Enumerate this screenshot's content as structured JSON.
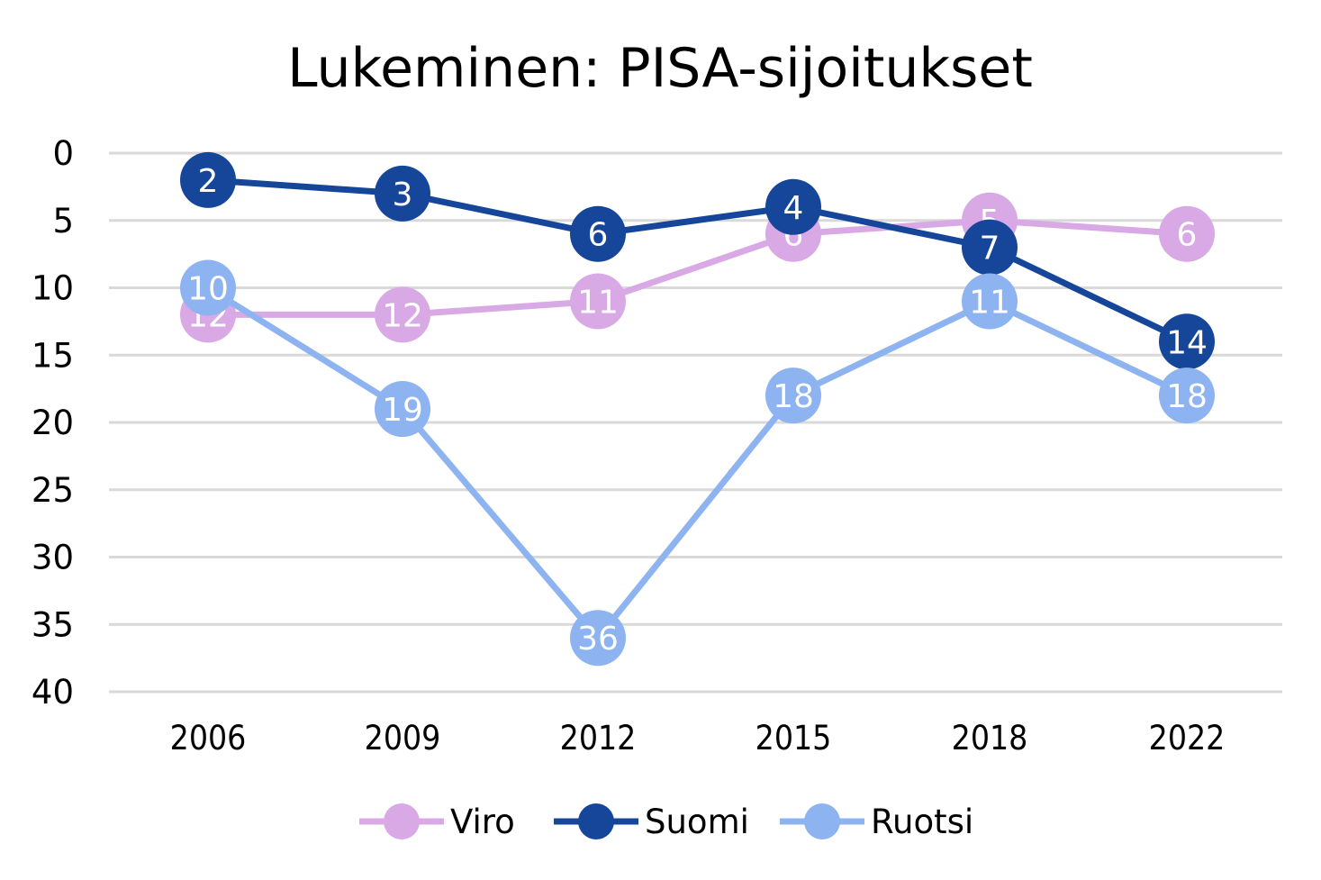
{
  "chart_data": {
    "type": "line",
    "title": "Lukeminen: PISA-sijoitukset",
    "xlabel": "",
    "ylabel": "",
    "categories": [
      "2006",
      "2009",
      "2012",
      "2015",
      "2018",
      "2022"
    ],
    "ylim": [
      0,
      40
    ],
    "y_inverted": true,
    "yticks": [
      0,
      5,
      10,
      15,
      20,
      25,
      30,
      35,
      40
    ],
    "grid": true,
    "legend_position": "bottom",
    "series": [
      {
        "name": "Viro",
        "color": "#d9a9e6",
        "values": [
          12,
          12,
          11,
          6,
          5,
          6
        ],
        "labels": [
          "12",
          "12",
          "11",
          "6",
          "5",
          "6"
        ]
      },
      {
        "name": "Suomi",
        "color": "#16469a",
        "values": [
          2,
          3,
          6,
          4,
          7,
          14
        ],
        "labels": [
          "2",
          "3",
          "6",
          "4",
          "7",
          "14"
        ]
      },
      {
        "name": "Ruotsi",
        "color": "#8db3f0",
        "values": [
          10,
          19,
          36,
          18,
          11,
          18
        ],
        "labels": [
          "10",
          "19",
          "36",
          "18",
          "11",
          "18"
        ]
      }
    ]
  }
}
